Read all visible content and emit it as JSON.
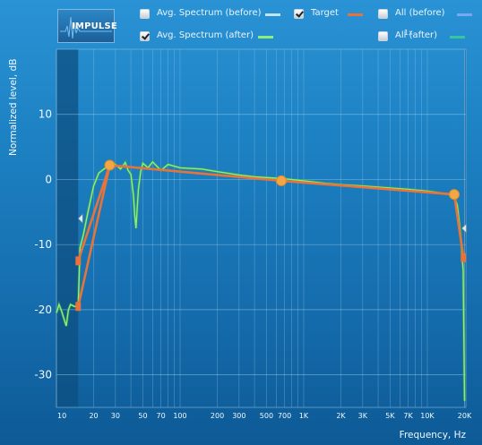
{
  "impulse_button": {
    "label": "IMPULSE"
  },
  "legend": [
    {
      "key": "avg_before",
      "label": "Avg. Spectrum (before)",
      "checked": false,
      "color": "#bfe6f5"
    },
    {
      "key": "target",
      "label": "Target",
      "checked": true,
      "color": "#e8733a"
    },
    {
      "key": "all_before",
      "label": "All (before)",
      "checked": false,
      "color": "#7aa8ee"
    },
    {
      "key": "avg_after",
      "label": "Avg. Spectrum (after)",
      "checked": true,
      "color": "#8bf07a"
    },
    {
      "key": "all_after",
      "label": "All (after)",
      "checked": false,
      "color": "#35c79c"
    }
  ],
  "zoom_label": "1x",
  "colors": {
    "background": "#1d82c3",
    "target": "#e8733a",
    "spectrum_after": "#8bf07a",
    "handle": "#f2a644",
    "shade": "#0e4f80",
    "grid": "#9fd0ee"
  },
  "chart_data": {
    "type": "line",
    "xlabel": "Frequency, Hz",
    "ylabel": "Normalized level, dB",
    "x_scale": "log",
    "xlim": [
      10,
      20500
    ],
    "ylim": [
      -35,
      20
    ],
    "x_ticks": [
      10,
      20,
      30,
      50,
      70,
      100,
      200,
      300,
      500,
      700,
      1000,
      2000,
      3000,
      5000,
      7000,
      10000,
      20000
    ],
    "x_tick_labels": [
      "10",
      "20",
      "30",
      "50",
      "70",
      "100",
      "200",
      "300",
      "500",
      "700",
      "1K",
      "2K",
      "3K",
      "5K",
      "7K",
      "10K",
      "20K"
    ],
    "y_ticks": [
      10,
      0,
      -10,
      -20,
      -30
    ],
    "y_tick_labels": [
      "10",
      "0",
      "-10",
      "-20",
      "-30"
    ],
    "grid": true,
    "target_range": [
      15,
      20000
    ],
    "series": [
      {
        "name": "Target",
        "color": "#e8733a",
        "x": [
          15,
          27,
          660,
          16500,
          19600
        ],
        "y": [
          -19.5,
          2.2,
          -0.2,
          -2.3,
          -12.0
        ]
      },
      {
        "name": "Target",
        "color": "#e8733a",
        "x": [
          15,
          27
        ],
        "y": [
          -12.5,
          2.2
        ]
      },
      {
        "name": "Avg. Spectrum (after)",
        "color": "#8bf07a",
        "x": [
          10,
          10.5,
          11,
          12,
          12.5,
          13,
          14,
          15,
          15.5,
          16.5,
          18,
          20,
          22,
          25,
          27,
          30,
          33,
          36,
          38,
          40,
          42,
          43,
          44,
          45,
          46,
          48,
          50,
          55,
          60,
          70,
          80,
          100,
          150,
          200,
          300,
          400,
          500,
          600,
          700,
          1000,
          1500,
          2000,
          3000,
          5000,
          7000,
          10000,
          12000,
          15000,
          16500,
          17500,
          18500,
          19500,
          20000
        ],
        "y": [
          -20.5,
          -19.2,
          -20.2,
          -22.5,
          -20,
          -19.2,
          -19.5,
          -19.5,
          -10.5,
          -8.5,
          -5,
          -1,
          1,
          1.8,
          2.1,
          2.3,
          1.6,
          2.6,
          1.4,
          0.8,
          -2.5,
          -5.5,
          -7.5,
          -4.5,
          -1.5,
          1.2,
          2.5,
          1.8,
          2.7,
          1.4,
          2.3,
          1.8,
          1.6,
          1.2,
          0.7,
          0.4,
          0.3,
          0.2,
          0.1,
          -0.2,
          -0.6,
          -0.8,
          -1.0,
          -1.3,
          -1.5,
          -1.8,
          -2.0,
          -2.3,
          -2.6,
          -4.0,
          -8.0,
          -14.0,
          -34.0
        ]
      }
    ],
    "handles": [
      {
        "x": 27,
        "y": 2.2
      },
      {
        "x": 660,
        "y": -0.2
      },
      {
        "x": 16500,
        "y": -2.3
      }
    ],
    "boundary_markers": [
      {
        "x": 15,
        "y": -19.5
      },
      {
        "x": 15,
        "y": -12.5
      },
      {
        "x": 19600,
        "y": -12.0
      }
    ]
  }
}
